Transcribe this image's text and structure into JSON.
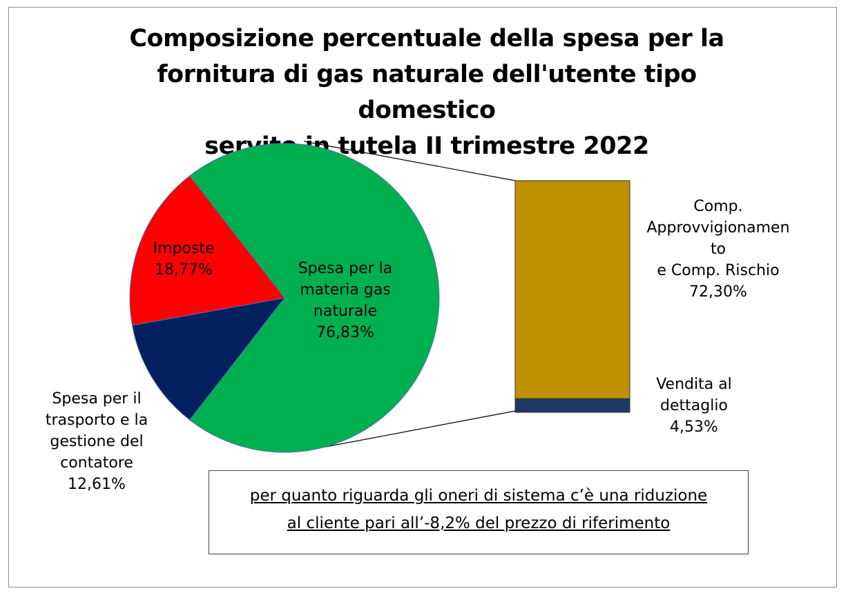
{
  "chart_data": [
    {
      "type": "pie",
      "title": [
        "Composizione percentuale della spesa per la",
        "fornitura di gas naturale dell'utente tipo domestico",
        "servito in tutela II trimestre 2022"
      ],
      "slices": [
        {
          "label": [
            "Spesa per la",
            "materia gas",
            "naturale",
            "76,83%"
          ],
          "value": 76.83,
          "color": "#00b050"
        },
        {
          "label": [
            "Spesa per il",
            "trasporto e la",
            "gestione del",
            "contatore",
            "12,61%"
          ],
          "value": 12.61,
          "color": "#002060"
        },
        {
          "label": [
            "Imposte",
            "18,77%"
          ],
          "value": 18.77,
          "color": "#ff0000"
        }
      ]
    },
    {
      "type": "bar",
      "stacked": true,
      "breakdown_of": "Spesa per la materia gas naturale",
      "segments": [
        {
          "label": [
            "Comp.",
            "Approvvigionamen",
            "to",
            "e  Comp. Rischio",
            "72,30%"
          ],
          "value": 72.3,
          "color": "#bf9000"
        },
        {
          "label": [
            "Vendita al",
            "dettaglio",
            "4,53%"
          ],
          "value": 4.53,
          "color": "#1f3864"
        }
      ]
    }
  ],
  "note": {
    "lines": [
      "per quanto riguarda gli oneri di sistema c’è una riduzione",
      "al cliente pari all’-8,2% del prezzo di riferimento"
    ]
  }
}
